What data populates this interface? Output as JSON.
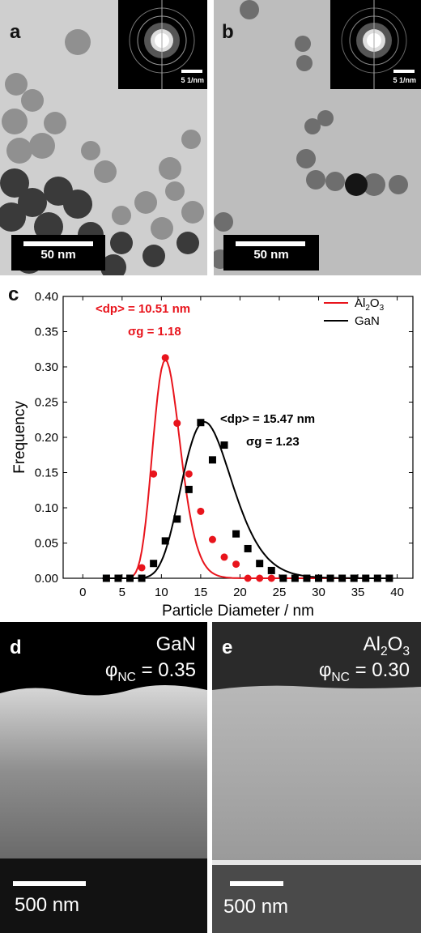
{
  "panels": {
    "a": {
      "letter": "a",
      "scale_bar": "50 nm",
      "inset_scale": "5 1/nm"
    },
    "b": {
      "letter": "b",
      "scale_bar": "50 nm",
      "inset_scale": "5 1/nm"
    },
    "c": {
      "letter": "c"
    },
    "d": {
      "letter": "d",
      "material": "GaN",
      "phi_symbol": "φ",
      "phi_sub": "NC",
      "phi_value": " = 0.35",
      "scale_bar": "500 nm"
    },
    "e": {
      "letter": "e",
      "material_main": "Al",
      "material_sub1": "2",
      "material_mid": "O",
      "material_sub2": "3",
      "phi_symbol": "φ",
      "phi_sub": "NC",
      "phi_value": " = 0.30",
      "scale_bar": "500 nm"
    }
  },
  "chart_data": {
    "type": "scatter",
    "xlabel": "Particle Diameter / nm",
    "ylabel": "Frequency",
    "xlim": [
      -2.5,
      42
    ],
    "ylim": [
      0,
      0.4
    ],
    "xticks": [
      0,
      5,
      10,
      15,
      20,
      25,
      30,
      35,
      40
    ],
    "yticks": [
      0.0,
      0.05,
      0.1,
      0.15,
      0.2,
      0.25,
      0.3,
      0.35,
      0.4
    ],
    "legend_position": "top-right",
    "series": [
      {
        "name": "Al2O3",
        "color": "#e8141c",
        "marker": "circle",
        "x": [
          3,
          4.5,
          6,
          7.5,
          9,
          10.5,
          12,
          13.5,
          15,
          16.5,
          18,
          19.5,
          21,
          22.5,
          24,
          25.5,
          27
        ],
        "y": [
          0.0,
          0.0,
          0.0,
          0.015,
          0.148,
          0.313,
          0.22,
          0.148,
          0.095,
          0.055,
          0.03,
          0.02,
          0.0,
          0.0,
          0.0,
          0.0,
          0.0
        ],
        "fit_mean": 10.51,
        "fit_sigma_g": 1.18,
        "fit_peak": 0.31
      },
      {
        "name": "GaN",
        "color": "#000000",
        "marker": "square",
        "x": [
          3,
          4.5,
          6,
          7.5,
          9,
          10.5,
          12,
          13.5,
          15,
          16.5,
          18,
          19.5,
          21,
          22.5,
          24,
          25.5,
          27,
          28.5,
          30,
          31.5,
          33,
          34.5,
          36,
          37.5,
          39
        ],
        "y": [
          0.0,
          0.0,
          0.0,
          0.0,
          0.021,
          0.053,
          0.084,
          0.126,
          0.221,
          0.168,
          0.189,
          0.063,
          0.042,
          0.021,
          0.011,
          0.0,
          0.0,
          0.0,
          0.0,
          0.0,
          0.0,
          0.0,
          0.0,
          0.0,
          0.0
        ],
        "fit_mean": 15.47,
        "fit_sigma_g": 1.23,
        "fit_peak": 0.222
      }
    ],
    "annotations": [
      {
        "dp_label": "<dp> = 10.51 nm",
        "sg_label": "σg = 1.18",
        "color": "#e8141c"
      },
      {
        "dp_label": "<dp> = 15.47 nm",
        "sg_label": "σg = 1.23",
        "color": "#000000"
      }
    ]
  }
}
